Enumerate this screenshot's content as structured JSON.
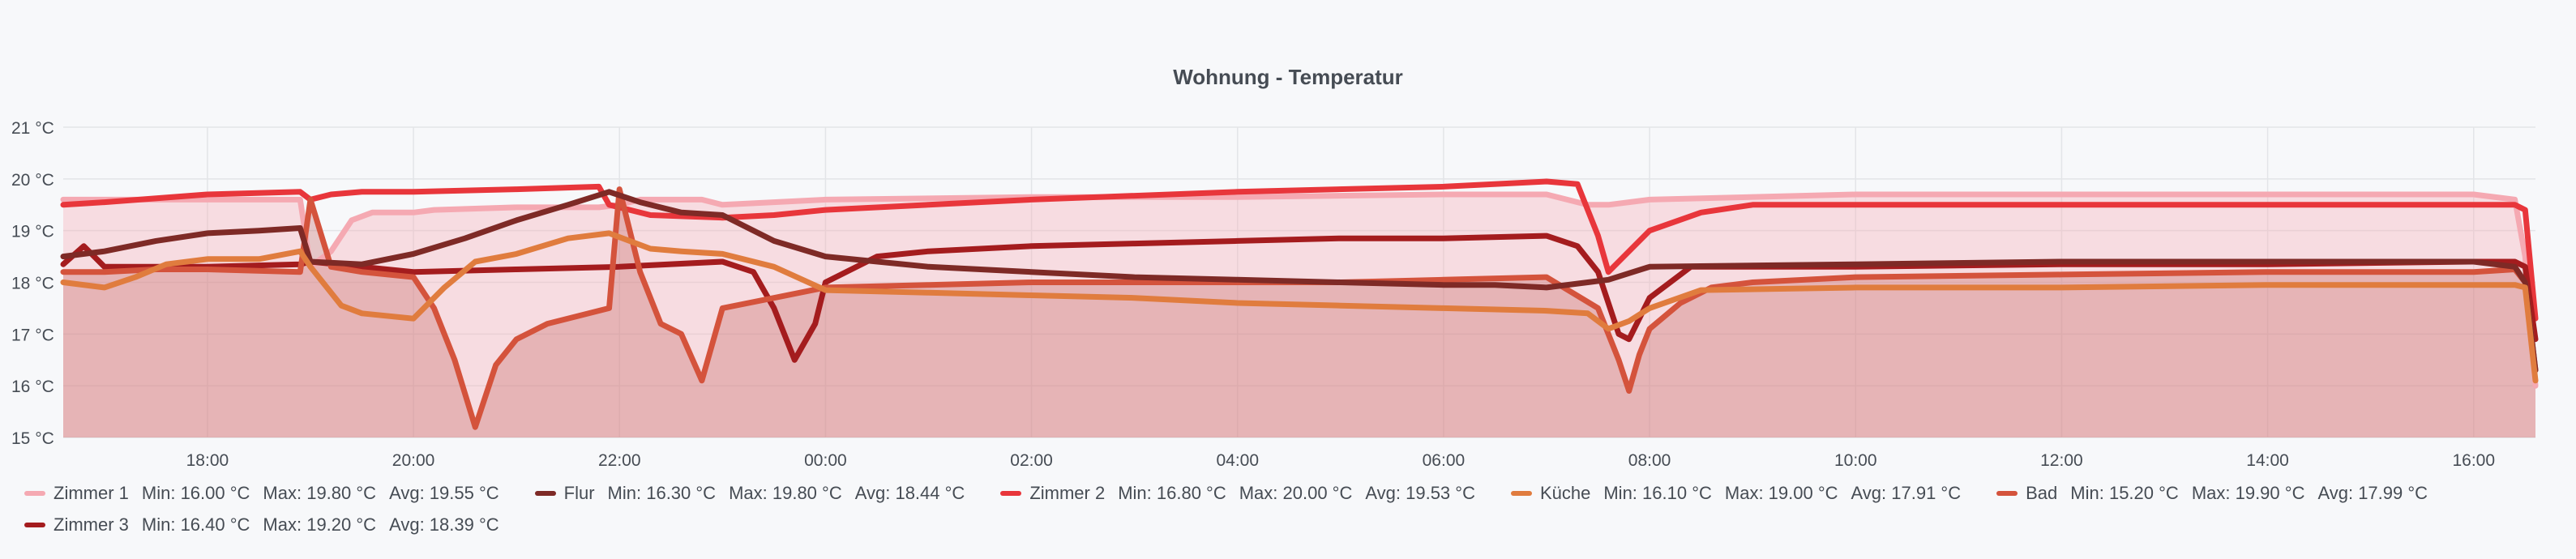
{
  "panel": {
    "title": "Wohnung - Temperatur"
  },
  "chart_data": {
    "type": "line",
    "title": "Wohnung - Temperatur",
    "xlabel": "",
    "ylabel": "",
    "ylim": [
      15,
      21
    ],
    "xlim": [
      16.6,
      40.6
    ],
    "grid": true,
    "legend_position": "bottom",
    "y_unit": "°C",
    "yticks": [
      15,
      16,
      17,
      18,
      19,
      20,
      21
    ],
    "ytick_labels": [
      "15 °C",
      "16 °C",
      "17 °C",
      "18 °C",
      "19 °C",
      "20 °C",
      "21 °C"
    ],
    "xticks": [
      18,
      20,
      22,
      24,
      26,
      28,
      30,
      32,
      34,
      36,
      38,
      40
    ],
    "xtick_labels": [
      "18:00",
      "20:00",
      "22:00",
      "00:00",
      "02:00",
      "04:00",
      "06:00",
      "08:00",
      "10:00",
      "12:00",
      "14:00",
      "16:00"
    ],
    "series": [
      {
        "name": "Zimmer 1",
        "color": "#f5a9b2",
        "fill": true,
        "x": [
          16.6,
          17.0,
          18.0,
          18.9,
          19.0,
          19.2,
          19.4,
          19.6,
          20.0,
          20.2,
          21.0,
          21.8,
          22.0,
          22.2,
          22.8,
          23.0,
          24.0,
          26.0,
          28.0,
          30.0,
          31.0,
          31.4,
          31.6,
          32.0,
          34.0,
          36.0,
          38.0,
          40.0,
          40.4,
          40.5,
          40.6
        ],
        "y": [
          19.6,
          19.6,
          19.6,
          19.6,
          18.3,
          18.6,
          19.2,
          19.35,
          19.35,
          19.4,
          19.45,
          19.45,
          19.5,
          19.6,
          19.6,
          19.5,
          19.6,
          19.65,
          19.65,
          19.7,
          19.7,
          19.5,
          19.5,
          19.6,
          19.7,
          19.7,
          19.7,
          19.7,
          19.6,
          18.5,
          16.0
        ],
        "min": "16.00 °C",
        "max": "19.80 °C",
        "avg": "19.55 °C"
      },
      {
        "name": "Flur",
        "color": "#7e2a26",
        "fill": false,
        "x": [
          16.6,
          17.0,
          17.5,
          18.0,
          18.5,
          18.9,
          19.0,
          19.5,
          20.0,
          20.5,
          21.0,
          21.5,
          21.9,
          22.2,
          22.6,
          23.0,
          23.5,
          24.0,
          25.0,
          26.0,
          27.0,
          28.0,
          29.0,
          30.0,
          30.5,
          31.0,
          31.4,
          31.6,
          32.0,
          34.0,
          36.0,
          38.0,
          40.0,
          40.4,
          40.5,
          40.6
        ],
        "y": [
          18.5,
          18.6,
          18.8,
          18.95,
          19.0,
          19.05,
          18.4,
          18.35,
          18.55,
          18.85,
          19.2,
          19.5,
          19.75,
          19.55,
          19.35,
          19.3,
          18.8,
          18.5,
          18.3,
          18.2,
          18.1,
          18.05,
          18.0,
          17.95,
          17.95,
          17.9,
          18.0,
          18.05,
          18.3,
          18.35,
          18.4,
          18.4,
          18.4,
          18.3,
          18.0,
          16.3
        ],
        "min": "16.30 °C",
        "max": "19.80 °C",
        "avg": "18.44 °C"
      },
      {
        "name": "Zimmer 2",
        "color": "#e8363b",
        "fill": false,
        "x": [
          16.6,
          17.0,
          18.0,
          18.9,
          19.0,
          19.2,
          19.5,
          20.0,
          21.0,
          21.8,
          21.9,
          22.3,
          23.0,
          23.5,
          24.0,
          26.0,
          28.0,
          30.0,
          31.0,
          31.3,
          31.5,
          31.6,
          31.8,
          32.0,
          32.5,
          33.0,
          34.0,
          36.0,
          38.0,
          40.0,
          40.4,
          40.5,
          40.6
        ],
        "y": [
          19.5,
          19.55,
          19.7,
          19.75,
          19.6,
          19.7,
          19.75,
          19.75,
          19.8,
          19.85,
          19.5,
          19.3,
          19.25,
          19.3,
          19.4,
          19.6,
          19.75,
          19.85,
          19.95,
          19.9,
          18.9,
          18.2,
          18.6,
          19.0,
          19.35,
          19.5,
          19.5,
          19.5,
          19.5,
          19.5,
          19.5,
          19.4,
          17.3
        ],
        "min": "16.80 °C",
        "max": "20.00 °C",
        "avg": "19.53 °C"
      },
      {
        "name": "Küche",
        "color": "#e07c3e",
        "fill": false,
        "x": [
          16.6,
          17.0,
          17.3,
          17.6,
          18.0,
          18.5,
          18.9,
          19.0,
          19.3,
          19.5,
          20.0,
          20.3,
          20.6,
          21.0,
          21.5,
          21.9,
          22.3,
          22.6,
          23.0,
          23.5,
          24.0,
          25.0,
          26.0,
          27.0,
          28.0,
          29.0,
          30.0,
          31.0,
          31.4,
          31.6,
          31.8,
          32.0,
          32.5,
          34.0,
          36.0,
          38.0,
          40.0,
          40.4,
          40.5,
          40.6
        ],
        "y": [
          18.0,
          17.9,
          18.1,
          18.35,
          18.45,
          18.45,
          18.6,
          18.3,
          17.55,
          17.4,
          17.3,
          17.9,
          18.4,
          18.55,
          18.85,
          18.95,
          18.65,
          18.6,
          18.55,
          18.3,
          17.85,
          17.8,
          17.75,
          17.7,
          17.6,
          17.55,
          17.5,
          17.45,
          17.4,
          17.1,
          17.25,
          17.5,
          17.85,
          17.9,
          17.9,
          17.95,
          17.95,
          17.95,
          17.9,
          16.1
        ],
        "min": "16.10 °C",
        "max": "19.00 °C",
        "avg": "17.91 °C"
      },
      {
        "name": "Bad",
        "color": "#d4533c",
        "fill": false,
        "x": [
          16.6,
          17.0,
          17.5,
          18.0,
          18.9,
          19.0,
          19.2,
          19.5,
          20.0,
          20.2,
          20.4,
          20.6,
          20.8,
          21.0,
          21.3,
          21.6,
          21.9,
          22.0,
          22.2,
          22.4,
          22.6,
          22.8,
          23.0,
          23.5,
          24.0,
          25.0,
          26.0,
          27.0,
          28.0,
          29.0,
          30.0,
          31.0,
          31.5,
          31.7,
          31.8,
          31.9,
          32.0,
          32.3,
          32.6,
          33.0,
          34.0,
          36.0,
          38.0,
          40.0,
          40.4,
          40.5,
          40.6
        ],
        "y": [
          18.2,
          18.2,
          18.25,
          18.25,
          18.2,
          19.6,
          18.3,
          18.2,
          18.1,
          17.5,
          16.5,
          15.2,
          16.4,
          16.9,
          17.2,
          17.35,
          17.5,
          19.8,
          18.2,
          17.2,
          17.0,
          16.1,
          17.5,
          17.7,
          17.9,
          17.95,
          18.0,
          18.0,
          18.0,
          18.0,
          18.05,
          18.1,
          17.5,
          16.5,
          15.9,
          16.6,
          17.1,
          17.6,
          17.9,
          18.0,
          18.1,
          18.15,
          18.2,
          18.2,
          18.25,
          18.0,
          16.3
        ],
        "min": "15.20 °C",
        "max": "19.90 °C",
        "avg": "17.99 °C"
      },
      {
        "name": "Zimmer 3",
        "color": "#a41c1e",
        "fill": false,
        "x": [
          16.6,
          16.8,
          17.0,
          17.5,
          18.0,
          18.9,
          19.0,
          19.5,
          20.0,
          21.0,
          22.0,
          23.0,
          23.3,
          23.5,
          23.7,
          23.9,
          24.0,
          24.5,
          25.0,
          26.0,
          27.0,
          28.0,
          29.0,
          30.0,
          31.0,
          31.3,
          31.5,
          31.7,
          31.8,
          32.0,
          32.4,
          33.0,
          34.0,
          36.0,
          38.0,
          40.0,
          40.4,
          40.5,
          40.6
        ],
        "y": [
          18.35,
          18.7,
          18.3,
          18.3,
          18.3,
          18.35,
          18.4,
          18.3,
          18.2,
          18.25,
          18.3,
          18.4,
          18.2,
          17.5,
          16.5,
          17.2,
          18.0,
          18.5,
          18.6,
          18.7,
          18.75,
          18.8,
          18.85,
          18.85,
          18.9,
          18.7,
          18.2,
          17.0,
          16.9,
          17.7,
          18.3,
          18.3,
          18.3,
          18.35,
          18.35,
          18.4,
          18.4,
          18.3,
          16.9
        ],
        "min": "16.40 °C",
        "max": "19.20 °C",
        "avg": "18.39 °C"
      }
    ]
  }
}
